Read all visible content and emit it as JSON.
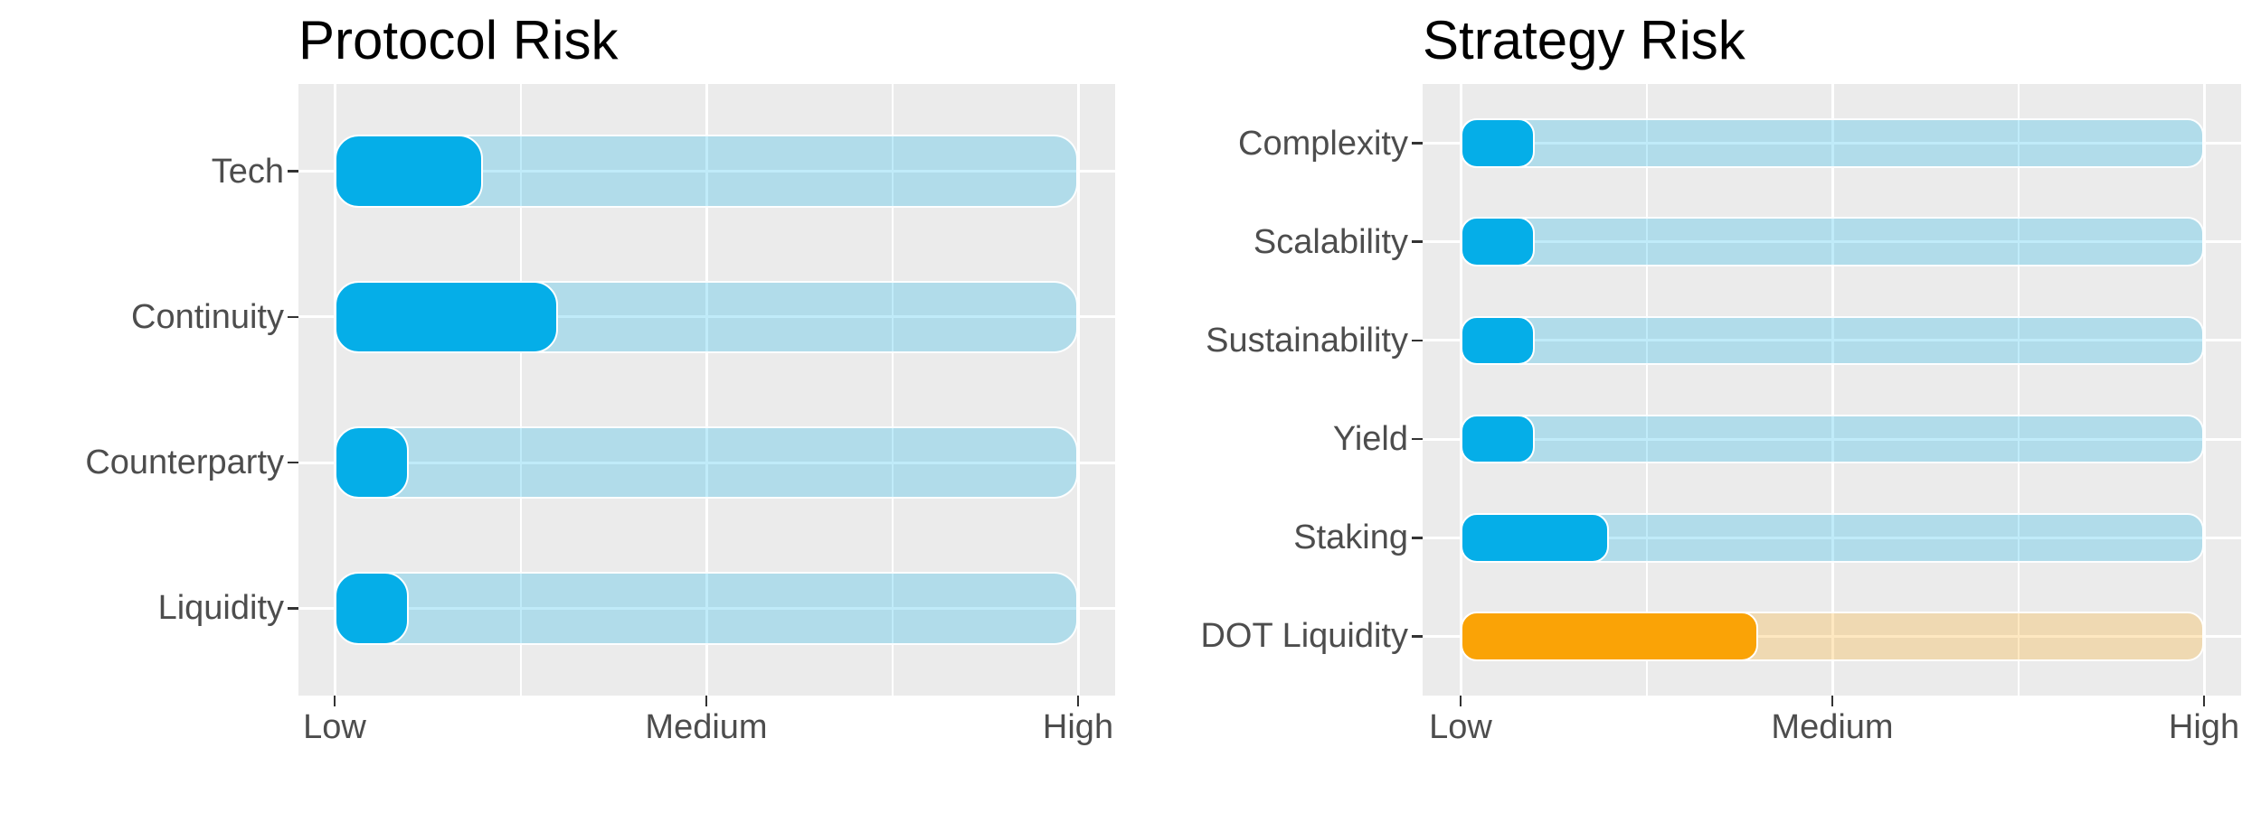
{
  "page": {
    "background": "#ffffff",
    "palette": {
      "panel_bg": "#EBEBEB",
      "gridline": "#FFFFFF",
      "label_color": "#4D4D4D",
      "title_color": "#000000",
      "tick_color": "#333333",
      "blue": "#05AEE8",
      "blue_track": "rgba(5,174,232,0.25)",
      "orange": "#FAA306",
      "orange_track": "rgba(250,163,6,0.25)"
    }
  },
  "chart_data": [
    {
      "type": "bar",
      "orientation": "horizontal",
      "title": "Protocol Risk",
      "categories": [
        "Tech",
        "Continuity",
        "Counterparty",
        "Liquidity"
      ],
      "values": [
        1.4,
        1.6,
        1.2,
        1.2
      ],
      "color_keys": [
        "blue",
        "blue",
        "blue",
        "blue"
      ],
      "xlabel": "",
      "ylabel": "",
      "xlim": [
        1,
        3
      ],
      "xtick_values": [
        1,
        2,
        3
      ],
      "xtick_labels": [
        "Low",
        "Medium",
        "High"
      ],
      "grid": "white major + minor on grey panel",
      "legend": "none",
      "track_full_scale": true
    },
    {
      "type": "bar",
      "orientation": "horizontal",
      "title": "Strategy Risk",
      "categories": [
        "Complexity",
        "Scalability",
        "Sustainability",
        "Yield",
        "Staking",
        "DOT Liquidity"
      ],
      "values": [
        1.2,
        1.2,
        1.2,
        1.2,
        1.4,
        1.8
      ],
      "color_keys": [
        "blue",
        "blue",
        "blue",
        "blue",
        "blue",
        "orange"
      ],
      "xlabel": "",
      "ylabel": "",
      "xlim": [
        1,
        3
      ],
      "xtick_values": [
        1,
        2,
        3
      ],
      "xtick_labels": [
        "Low",
        "Medium",
        "High"
      ],
      "grid": "white major + minor on grey panel",
      "legend": "none",
      "track_full_scale": true
    }
  ]
}
